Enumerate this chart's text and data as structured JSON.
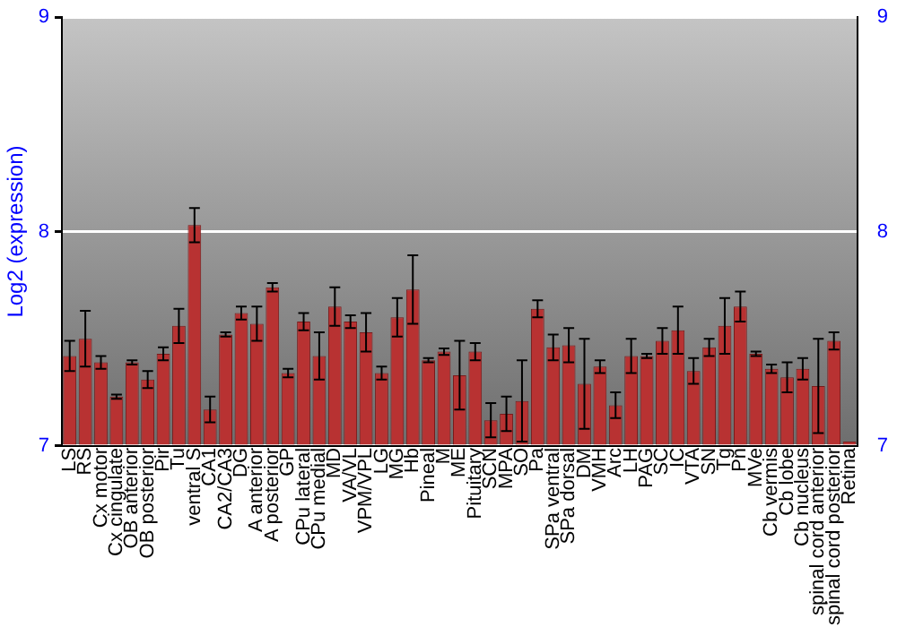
{
  "chart_data": {
    "type": "bar",
    "ylabel": "Log2 (expression)",
    "categories": [
      "LS",
      "RS",
      "Cx motor",
      "Cx cingulate",
      "OB anterior",
      "OB posterior",
      "Pir",
      "Tu",
      "ventral S",
      "CA1",
      "CA2/CA3",
      "DG",
      "A anterior",
      "A posterior",
      "GP",
      "CPu lateral",
      "CPu medial",
      "MD",
      "VA/VL",
      "VPM/VPL",
      "LG",
      "MG",
      "Hb",
      "Pineal",
      "M",
      "ME",
      "Pituitary",
      "SCN",
      "MPA",
      "SO",
      "Pa",
      "SPa ventral",
      "SPa dorsal",
      "DM",
      "VMH",
      "Arc",
      "LH",
      "PAG",
      "SC",
      "IC",
      "VTA",
      "SN",
      "Tg",
      "Pn",
      "MVe",
      "Cb vermis",
      "Cb lobe",
      "Cb nucleus",
      "spinal cord anterior",
      "spinal cord posterior",
      "Retina"
    ],
    "values": [
      7.42,
      7.5,
      7.39,
      7.23,
      7.39,
      7.31,
      7.43,
      7.56,
      8.03,
      7.17,
      7.52,
      7.62,
      7.57,
      7.74,
      7.34,
      7.58,
      7.42,
      7.65,
      7.58,
      7.53,
      7.34,
      7.6,
      7.73,
      7.4,
      7.44,
      7.33,
      7.44,
      7.12,
      7.15,
      7.21,
      7.64,
      7.46,
      7.47,
      7.29,
      7.37,
      7.19,
      7.42,
      7.42,
      7.49,
      7.54,
      7.35,
      7.46,
      7.56,
      7.65,
      7.43,
      7.36,
      7.32,
      7.36,
      7.28,
      7.49,
      7.02
    ],
    "errors": [
      0.07,
      0.13,
      0.03,
      0.01,
      0.01,
      0.04,
      0.03,
      0.08,
      0.08,
      0.06,
      0.01,
      0.03,
      0.08,
      0.02,
      0.02,
      0.04,
      0.11,
      0.09,
      0.03,
      0.09,
      0.03,
      0.09,
      0.16,
      0.01,
      0.015,
      0.16,
      0.04,
      0.08,
      0.08,
      0.19,
      0.04,
      0.06,
      0.08,
      0.21,
      0.03,
      0.06,
      0.08,
      0.01,
      0.06,
      0.11,
      0.06,
      0.04,
      0.13,
      0.07,
      0.01,
      0.02,
      0.07,
      0.05,
      0.22,
      0.04,
      null
    ],
    "color": "#b83232",
    "ylim": [
      7,
      9
    ],
    "yticks": [
      7,
      8,
      9
    ],
    "y2lim": [
      7,
      9
    ],
    "y2ticks": [
      7,
      8,
      9
    ],
    "grid": "y"
  }
}
